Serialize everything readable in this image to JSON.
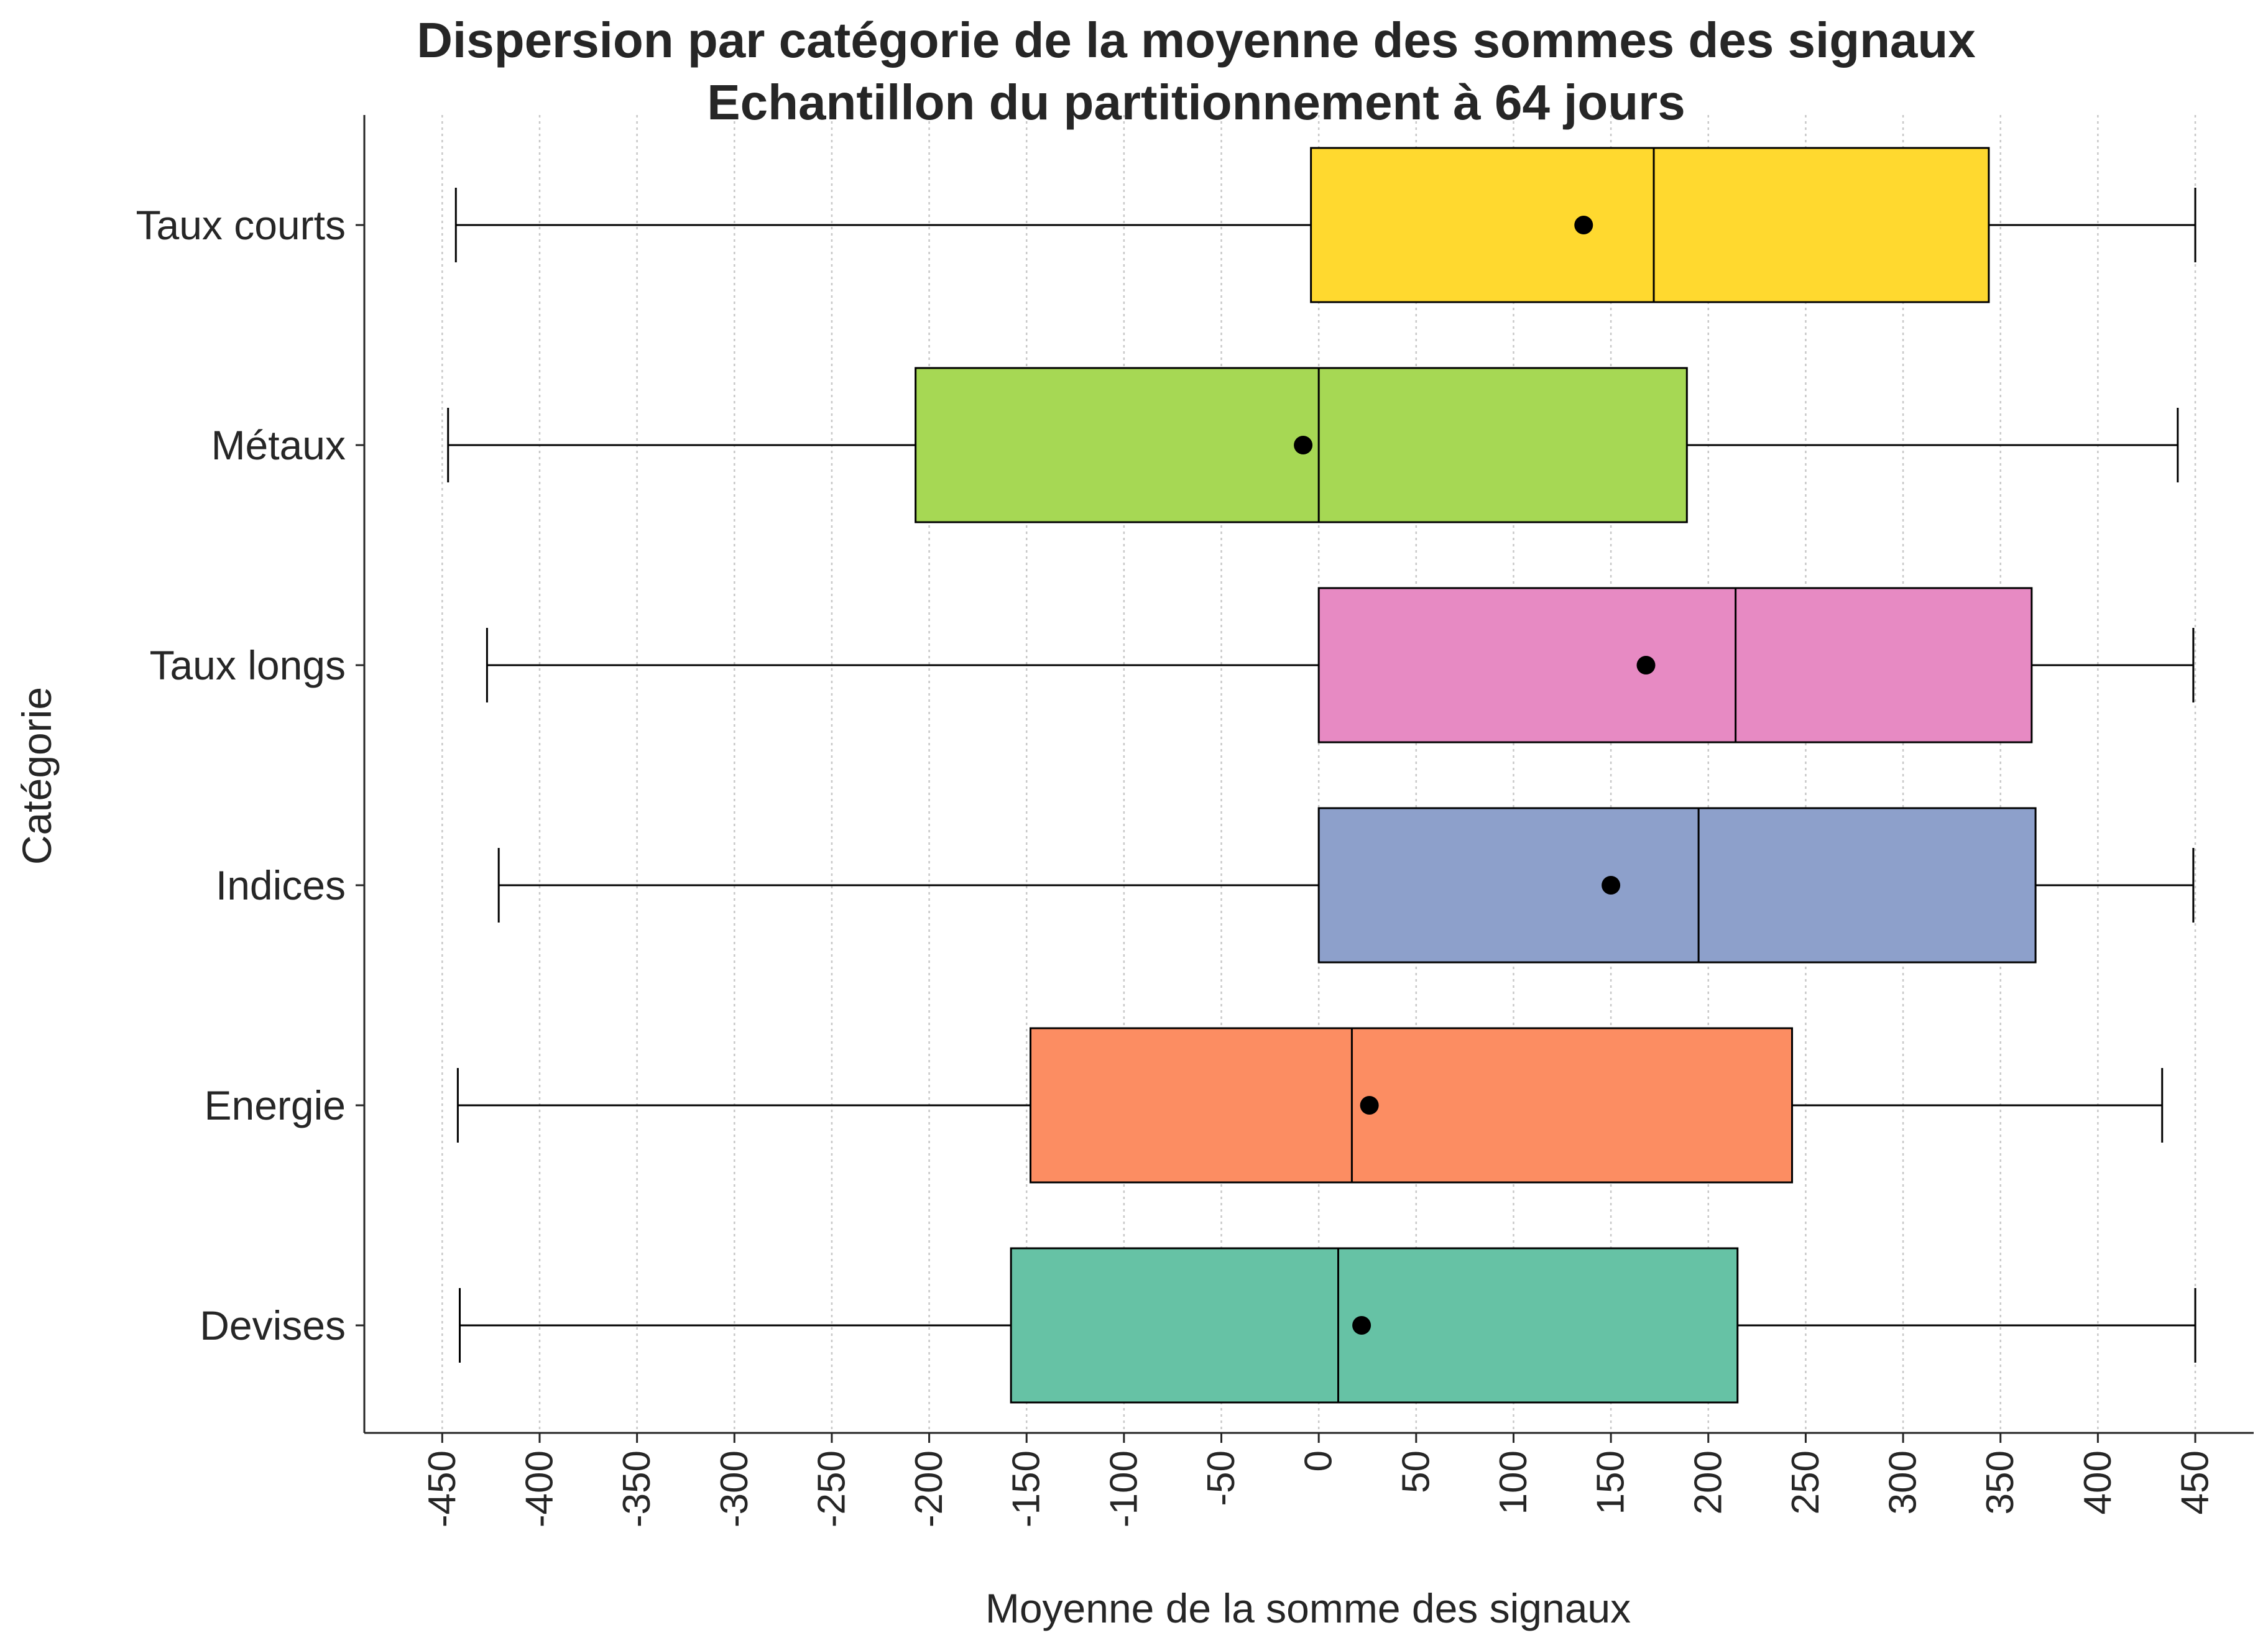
{
  "chart_data": {
    "type": "boxplot",
    "orientation": "horizontal",
    "title": "Dispersion par catégorie de la moyenne des sommes des signaux",
    "subtitle": "Echantillon du partitionnement à 64 jours",
    "xlabel": "Moyenne de la somme des signaux",
    "ylabel": "Catégorie",
    "xlim": [
      -490,
      480
    ],
    "x_ticks": [
      -450,
      -400,
      -350,
      -300,
      -250,
      -200,
      -150,
      -100,
      -50,
      0,
      50,
      100,
      150,
      200,
      250,
      300,
      350,
      400,
      450
    ],
    "x_tick_labels": [
      "-450",
      "-400",
      "-350",
      "-300",
      "-250",
      "-200",
      "-150",
      "-100",
      "-50",
      "0",
      "50",
      "100",
      "150",
      "200",
      "250",
      "300",
      "350",
      "400",
      "450"
    ],
    "grid": "vertical-dotted",
    "categories": [
      {
        "name": "Taux courts",
        "color": "#FFD92F",
        "whisker_low": -443,
        "q1": -4,
        "median": 172,
        "q3": 344,
        "whisker_high": 450,
        "mean": 136
      },
      {
        "name": "Métaux",
        "color": "#A6D854",
        "whisker_low": -447,
        "q1": -207,
        "median": 0,
        "q3": 189,
        "whisker_high": 441,
        "mean": -8
      },
      {
        "name": "Taux longs",
        "color": "#E78AC3",
        "whisker_low": -427,
        "q1": 0,
        "median": 214,
        "q3": 366,
        "whisker_high": 449,
        "mean": 168
      },
      {
        "name": "Indices",
        "color": "#8DA0CB",
        "whisker_low": -421,
        "q1": 0,
        "median": 195,
        "q3": 368,
        "whisker_high": 449,
        "mean": 150
      },
      {
        "name": "Energie",
        "color": "#FC8D62",
        "whisker_low": -442,
        "q1": -148,
        "median": 17,
        "q3": 243,
        "whisker_high": 433,
        "mean": 26
      },
      {
        "name": "Devises",
        "color": "#66C2A5",
        "whisker_low": -441,
        "q1": -158,
        "median": 10,
        "q3": 215,
        "whisker_high": 450,
        "mean": 22
      }
    ]
  }
}
